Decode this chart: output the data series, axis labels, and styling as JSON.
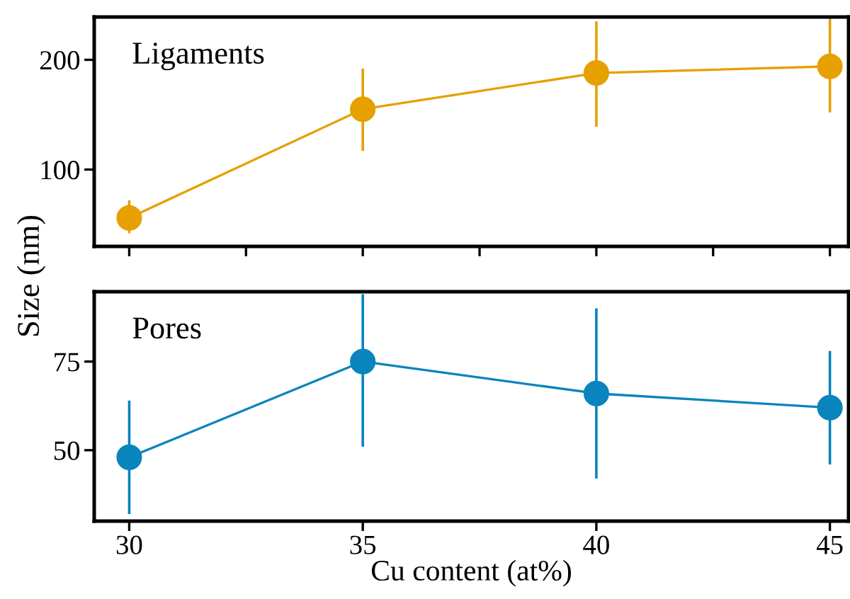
{
  "chart_data": [
    {
      "type": "line",
      "x": [
        30,
        35,
        40,
        45
      ],
      "ylabel": "Size (nm)",
      "annotations": [
        "Ligaments"
      ],
      "xlim": [
        29.25,
        45.4
      ],
      "ylim": [
        30,
        239
      ],
      "xticks": [
        {
          "value": 30,
          "label": null
        },
        {
          "value": 32.5,
          "label": null
        },
        {
          "value": 35,
          "label": null
        },
        {
          "value": 37.5,
          "label": null
        },
        {
          "value": 40,
          "label": null
        },
        {
          "value": 42.5,
          "label": null
        },
        {
          "value": 45,
          "label": null
        }
      ],
      "yticks": [
        100,
        200
      ],
      "tick_labels": "y",
      "marker": "circle",
      "line_style": "solid",
      "grid": false,
      "series": [
        {
          "color": "#e6a000",
          "values": [
            56,
            155,
            188,
            194
          ],
          "errors": [
            [
              42,
              72
            ],
            [
              117,
              192
            ],
            [
              139,
              235
            ],
            [
              152,
              238
            ]
          ]
        }
      ]
    },
    {
      "type": "line",
      "x": [
        30,
        35,
        40,
        45
      ],
      "xlabel": "Cu content (at%)",
      "annotations": [
        "Pores"
      ],
      "xlim": [
        29.25,
        45.4
      ],
      "ylim": [
        30,
        94.7
      ],
      "xticks": [
        30,
        35,
        40,
        45
      ],
      "yticks": [
        50,
        75
      ],
      "marker": "circle",
      "line_style": "solid",
      "grid": false,
      "series": [
        {
          "color": "#0a84bd",
          "values": [
            48,
            75,
            66,
            62
          ],
          "errors": [
            [
              32,
              64
            ],
            [
              51,
              94
            ],
            [
              42,
              90
            ],
            [
              46,
              78
            ]
          ]
        }
      ]
    }
  ]
}
